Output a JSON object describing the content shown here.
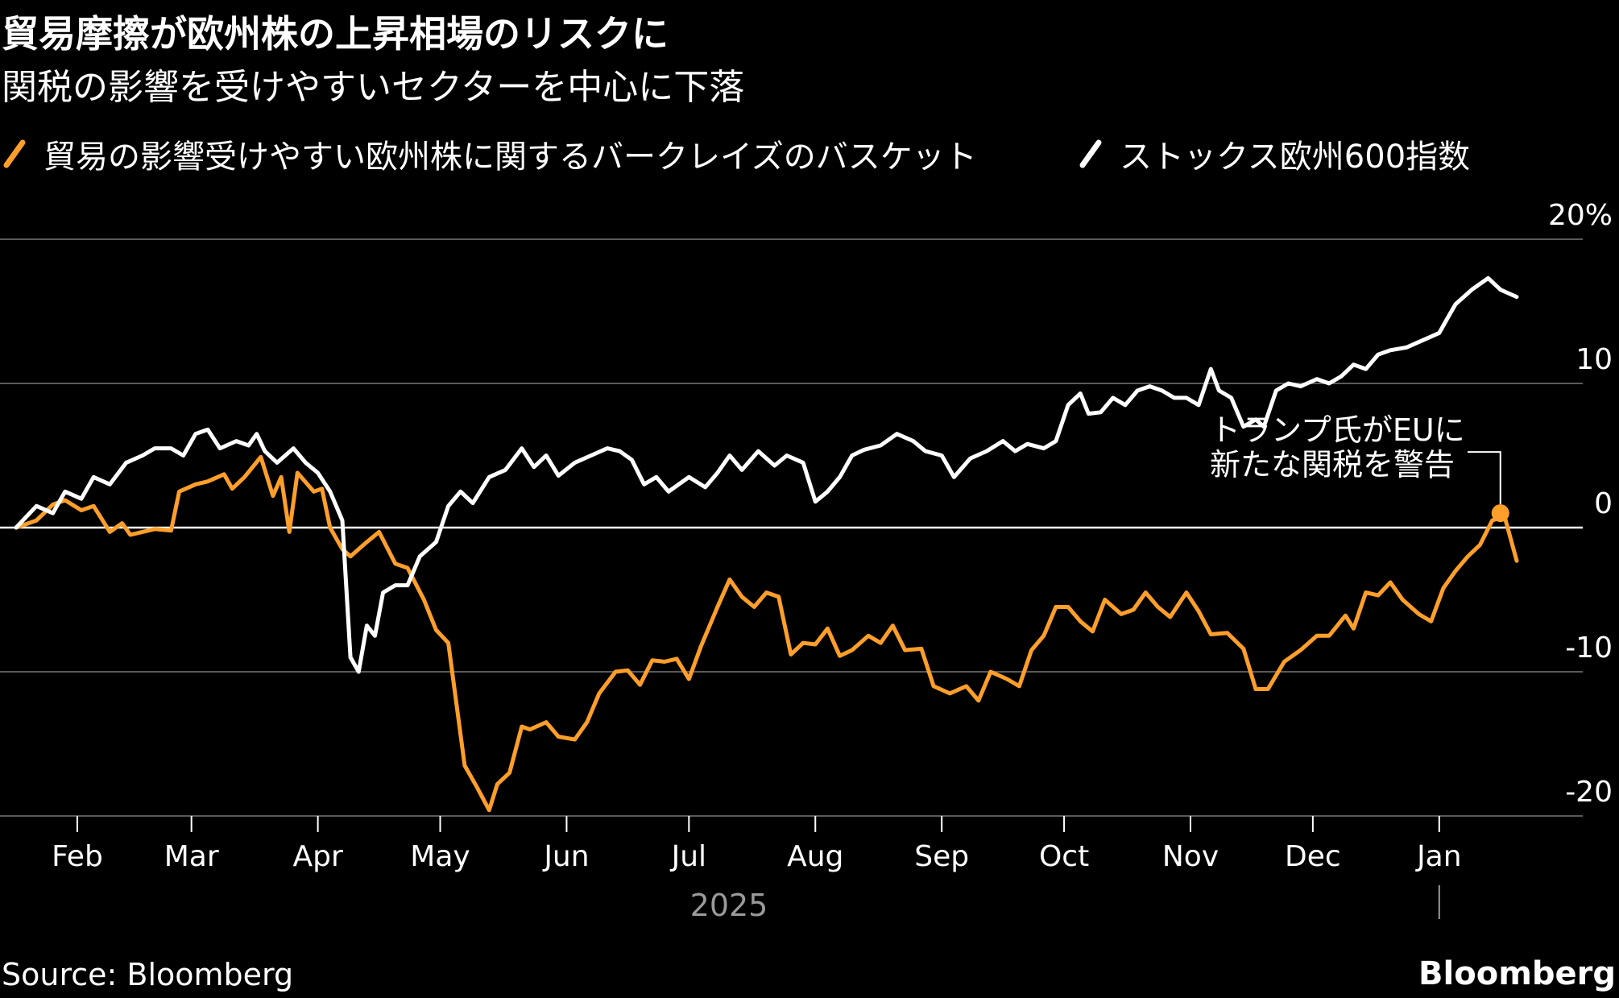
{
  "title": "貿易摩擦が欧州株の上昇相場のリスクに",
  "subtitle": "関税の影響を受けやすいセクターを中心に下落",
  "source": "Source: Bloomberg",
  "brand": "Bloomberg",
  "colors": {
    "background": "#000000",
    "trade_basket": "#ff9f2a",
    "stoxx600": "#ffffff",
    "grid": "#5a5a5a"
  },
  "chart_data": {
    "type": "line",
    "title": "貿易摩擦が欧州株の上昇相場のリスクに",
    "subtitle": "関税の影響を受けやすいセクターを中心に下落",
    "xlabel": "",
    "ylabel": "",
    "x_range": [
      "2025-01-17",
      "2026-01-20"
    ],
    "ylim": [
      -20,
      20
    ],
    "y_ticks": [
      20,
      10,
      0,
      -10,
      -20
    ],
    "y_tick_labels": [
      "20%",
      "10",
      "0",
      "-10",
      "-20"
    ],
    "x_tick_labels": [
      "Feb",
      "Mar",
      "Apr",
      "May",
      "Jun",
      "Jul",
      "Aug",
      "Sep",
      "Oct",
      "Nov",
      "Dec",
      "Jan"
    ],
    "x_tick_dates": [
      "2025-02-01",
      "2025-03-01",
      "2025-04-01",
      "2025-05-01",
      "2025-06-01",
      "2025-07-01",
      "2025-08-01",
      "2025-09-01",
      "2025-10-01",
      "2025-11-01",
      "2025-12-01",
      "2026-01-01"
    ],
    "year_label": "2025",
    "grid": true,
    "legend_position": "top-left",
    "annotation": {
      "text_lines": [
        "トランプ氏がEUに",
        "新たな関税を警告"
      ],
      "date": "2026-01-16",
      "value": 1.0
    },
    "series": [
      {
        "name": "貿易の影響受けやすい欧州株に関するバークレイズのバスケット",
        "color": "#ff9f2a",
        "points": [
          [
            "2025-01-17",
            0
          ],
          [
            "2025-01-22",
            0.5
          ],
          [
            "2025-01-26",
            1.6
          ],
          [
            "2025-01-29",
            1.9
          ],
          [
            "2025-02-02",
            1.2
          ],
          [
            "2025-02-05",
            1.5
          ],
          [
            "2025-02-09",
            -0.3
          ],
          [
            "2025-02-12",
            0.3
          ],
          [
            "2025-02-14",
            -0.5
          ],
          [
            "2025-02-17",
            -0.3
          ],
          [
            "2025-02-20",
            -0.1
          ],
          [
            "2025-02-24",
            -0.2
          ],
          [
            "2025-02-26",
            2.5
          ],
          [
            "2025-03-02",
            3.0
          ],
          [
            "2025-03-05",
            3.2
          ],
          [
            "2025-03-09",
            3.7
          ],
          [
            "2025-03-11",
            2.7
          ],
          [
            "2025-03-14",
            3.5
          ],
          [
            "2025-03-18",
            4.9
          ],
          [
            "2025-03-21",
            2.2
          ],
          [
            "2025-03-23",
            3.5
          ],
          [
            "2025-03-25",
            -0.3
          ],
          [
            "2025-03-27",
            3.8
          ],
          [
            "2025-03-31",
            2.5
          ],
          [
            "2025-04-02",
            2.7
          ],
          [
            "2025-04-04",
            0
          ],
          [
            "2025-04-07",
            -1.5
          ],
          [
            "2025-04-09",
            -2.0
          ],
          [
            "2025-04-13",
            -1.0
          ],
          [
            "2025-04-16",
            -0.3
          ],
          [
            "2025-04-20",
            -2.5
          ],
          [
            "2025-04-23",
            -2.8
          ],
          [
            "2025-04-27",
            -5.0
          ],
          [
            "2025-04-30",
            -7.1
          ],
          [
            "2025-05-03",
            -8.0
          ],
          [
            "2025-05-07",
            -16.5
          ],
          [
            "2025-05-10",
            -18.0
          ],
          [
            "2025-05-13",
            -19.6
          ],
          [
            "2025-05-15",
            -17.8
          ],
          [
            "2025-05-18",
            -17.0
          ],
          [
            "2025-05-21",
            -13.8
          ],
          [
            "2025-05-23",
            -14.0
          ],
          [
            "2025-05-27",
            -13.5
          ],
          [
            "2025-05-30",
            -14.5
          ],
          [
            "2025-06-03",
            -14.7
          ],
          [
            "2025-06-06",
            -13.5
          ],
          [
            "2025-06-09",
            -11.5
          ],
          [
            "2025-06-13",
            -10.0
          ],
          [
            "2025-06-16",
            -9.9
          ],
          [
            "2025-06-19",
            -10.9
          ],
          [
            "2025-06-22",
            -9.2
          ],
          [
            "2025-06-25",
            -9.3
          ],
          [
            "2025-06-28",
            -9.1
          ],
          [
            "2025-07-01",
            -10.5
          ],
          [
            "2025-07-04",
            -8.2
          ],
          [
            "2025-07-08",
            -5.5
          ],
          [
            "2025-07-11",
            -3.6
          ],
          [
            "2025-07-14",
            -4.8
          ],
          [
            "2025-07-17",
            -5.5
          ],
          [
            "2025-07-20",
            -4.5
          ],
          [
            "2025-07-23",
            -4.8
          ],
          [
            "2025-07-26",
            -8.8
          ],
          [
            "2025-07-29",
            -8.0
          ],
          [
            "2025-08-01",
            -8.1
          ],
          [
            "2025-08-04",
            -7.0
          ],
          [
            "2025-08-07",
            -8.9
          ],
          [
            "2025-08-10",
            -8.5
          ],
          [
            "2025-08-14",
            -7.5
          ],
          [
            "2025-08-17",
            -8.0
          ],
          [
            "2025-08-20",
            -6.8
          ],
          [
            "2025-08-23",
            -8.5
          ],
          [
            "2025-08-27",
            -8.4
          ],
          [
            "2025-08-30",
            -11.0
          ],
          [
            "2025-09-03",
            -11.5
          ],
          [
            "2025-09-07",
            -11.0
          ],
          [
            "2025-09-10",
            -12.0
          ],
          [
            "2025-09-13",
            -10.0
          ],
          [
            "2025-09-17",
            -10.5
          ],
          [
            "2025-09-20",
            -11.0
          ],
          [
            "2025-09-23",
            -8.5
          ],
          [
            "2025-09-26",
            -7.5
          ],
          [
            "2025-09-29",
            -5.5
          ],
          [
            "2025-10-02",
            -5.5
          ],
          [
            "2025-10-05",
            -6.5
          ],
          [
            "2025-10-08",
            -7.2
          ],
          [
            "2025-10-11",
            -5.0
          ],
          [
            "2025-10-15",
            -6.0
          ],
          [
            "2025-10-18",
            -5.7
          ],
          [
            "2025-10-21",
            -4.5
          ],
          [
            "2025-10-24",
            -5.5
          ],
          [
            "2025-10-27",
            -6.2
          ],
          [
            "2025-10-31",
            -4.5
          ],
          [
            "2025-11-03",
            -5.8
          ],
          [
            "2025-11-06",
            -7.4
          ],
          [
            "2025-11-10",
            -7.3
          ],
          [
            "2025-11-14",
            -8.4
          ],
          [
            "2025-11-17",
            -11.2
          ],
          [
            "2025-11-20",
            -11.2
          ],
          [
            "2025-11-24",
            -9.3
          ],
          [
            "2025-11-28",
            -8.5
          ],
          [
            "2025-12-02",
            -7.5
          ],
          [
            "2025-12-05",
            -7.5
          ],
          [
            "2025-12-09",
            -6.1
          ],
          [
            "2025-12-11",
            -7.0
          ],
          [
            "2025-12-14",
            -4.5
          ],
          [
            "2025-12-17",
            -4.7
          ],
          [
            "2025-12-20",
            -3.8
          ],
          [
            "2025-12-23",
            -5.0
          ],
          [
            "2025-12-27",
            -6.0
          ],
          [
            "2025-12-30",
            -6.5
          ],
          [
            "2026-01-02",
            -4.2
          ],
          [
            "2026-01-05",
            -3.0
          ],
          [
            "2026-01-08",
            -2.0
          ],
          [
            "2026-01-11",
            -1.2
          ],
          [
            "2026-01-14",
            0.5
          ],
          [
            "2026-01-17",
            0.8
          ],
          [
            "2026-01-20",
            -2.3
          ]
        ]
      },
      {
        "name": "ストックス欧州600指数",
        "color": "#ffffff",
        "points": [
          [
            "2025-01-17",
            0
          ],
          [
            "2025-01-22",
            1.5
          ],
          [
            "2025-01-26",
            1.0
          ],
          [
            "2025-01-29",
            2.5
          ],
          [
            "2025-02-02",
            2.0
          ],
          [
            "2025-02-05",
            3.5
          ],
          [
            "2025-02-09",
            3.0
          ],
          [
            "2025-02-13",
            4.5
          ],
          [
            "2025-02-17",
            5.0
          ],
          [
            "2025-02-20",
            5.5
          ],
          [
            "2025-02-24",
            5.5
          ],
          [
            "2025-02-27",
            5.0
          ],
          [
            "2025-03-02",
            6.5
          ],
          [
            "2025-03-05",
            6.8
          ],
          [
            "2025-03-08",
            5.5
          ],
          [
            "2025-03-12",
            6.0
          ],
          [
            "2025-03-15",
            5.7
          ],
          [
            "2025-03-17",
            6.5
          ],
          [
            "2025-03-19",
            5.3
          ],
          [
            "2025-03-22",
            4.5
          ],
          [
            "2025-03-26",
            5.5
          ],
          [
            "2025-03-29",
            4.5
          ],
          [
            "2025-04-01",
            3.8
          ],
          [
            "2025-04-04",
            2.5
          ],
          [
            "2025-04-07",
            0.5
          ],
          [
            "2025-04-09",
            -9.0
          ],
          [
            "2025-04-11",
            -10.0
          ],
          [
            "2025-04-13",
            -6.8
          ],
          [
            "2025-04-15",
            -7.5
          ],
          [
            "2025-04-17",
            -4.5
          ],
          [
            "2025-04-20",
            -4.0
          ],
          [
            "2025-04-23",
            -4.0
          ],
          [
            "2025-04-26",
            -2.0
          ],
          [
            "2025-04-30",
            -1.0
          ],
          [
            "2025-05-03",
            1.5
          ],
          [
            "2025-05-06",
            2.5
          ],
          [
            "2025-05-09",
            1.7
          ],
          [
            "2025-05-13",
            3.5
          ],
          [
            "2025-05-17",
            4.0
          ],
          [
            "2025-05-21",
            5.5
          ],
          [
            "2025-05-24",
            4.2
          ],
          [
            "2025-05-27",
            5.0
          ],
          [
            "2025-05-30",
            3.6
          ],
          [
            "2025-06-03",
            4.5
          ],
          [
            "2025-06-07",
            5.0
          ],
          [
            "2025-06-11",
            5.5
          ],
          [
            "2025-06-14",
            5.3
          ],
          [
            "2025-06-17",
            4.7
          ],
          [
            "2025-06-20",
            3.0
          ],
          [
            "2025-06-23",
            3.5
          ],
          [
            "2025-06-26",
            2.5
          ],
          [
            "2025-07-01",
            3.5
          ],
          [
            "2025-07-05",
            2.8
          ],
          [
            "2025-07-08",
            3.8
          ],
          [
            "2025-07-11",
            5.0
          ],
          [
            "2025-07-14",
            4.0
          ],
          [
            "2025-07-18",
            5.3
          ],
          [
            "2025-07-22",
            4.3
          ],
          [
            "2025-07-25",
            5.0
          ],
          [
            "2025-07-29",
            4.5
          ],
          [
            "2025-08-01",
            1.8
          ],
          [
            "2025-08-04",
            2.5
          ],
          [
            "2025-08-07",
            3.5
          ],
          [
            "2025-08-10",
            5.0
          ],
          [
            "2025-08-13",
            5.4
          ],
          [
            "2025-08-17",
            5.7
          ],
          [
            "2025-08-21",
            6.5
          ],
          [
            "2025-08-25",
            6.0
          ],
          [
            "2025-08-28",
            5.3
          ],
          [
            "2025-09-01",
            5.0
          ],
          [
            "2025-09-04",
            3.5
          ],
          [
            "2025-09-08",
            4.8
          ],
          [
            "2025-09-12",
            5.3
          ],
          [
            "2025-09-16",
            6.0
          ],
          [
            "2025-09-19",
            5.3
          ],
          [
            "2025-09-22",
            5.8
          ],
          [
            "2025-09-26",
            5.5
          ],
          [
            "2025-09-29",
            6.0
          ],
          [
            "2025-10-02",
            8.5
          ],
          [
            "2025-10-05",
            9.3
          ],
          [
            "2025-10-07",
            7.9
          ],
          [
            "2025-10-10",
            8.0
          ],
          [
            "2025-10-13",
            9.0
          ],
          [
            "2025-10-16",
            8.5
          ],
          [
            "2025-10-19",
            9.5
          ],
          [
            "2025-10-22",
            9.8
          ],
          [
            "2025-10-25",
            9.5
          ],
          [
            "2025-10-28",
            9.0
          ],
          [
            "2025-10-31",
            9.0
          ],
          [
            "2025-11-03",
            8.5
          ],
          [
            "2025-11-06",
            11.0
          ],
          [
            "2025-11-08",
            9.5
          ],
          [
            "2025-11-11",
            9.0
          ],
          [
            "2025-11-14",
            7.0
          ],
          [
            "2025-11-17",
            7.5
          ],
          [
            "2025-11-19",
            7.0
          ],
          [
            "2025-11-22",
            9.5
          ],
          [
            "2025-11-25",
            10.0
          ],
          [
            "2025-11-28",
            9.8
          ],
          [
            "2025-12-02",
            10.3
          ],
          [
            "2025-12-05",
            10.0
          ],
          [
            "2025-12-08",
            10.5
          ],
          [
            "2025-12-11",
            11.3
          ],
          [
            "2025-12-14",
            11.0
          ],
          [
            "2025-12-17",
            12.0
          ],
          [
            "2025-12-20",
            12.3
          ],
          [
            "2025-12-24",
            12.5
          ],
          [
            "2025-12-28",
            13.0
          ],
          [
            "2026-01-01",
            13.5
          ],
          [
            "2026-01-03",
            14.5
          ],
          [
            "2026-01-05",
            15.5
          ],
          [
            "2026-01-09",
            16.5
          ],
          [
            "2026-01-13",
            17.3
          ],
          [
            "2026-01-16",
            16.5
          ],
          [
            "2026-01-20",
            16.0
          ]
        ]
      }
    ]
  }
}
